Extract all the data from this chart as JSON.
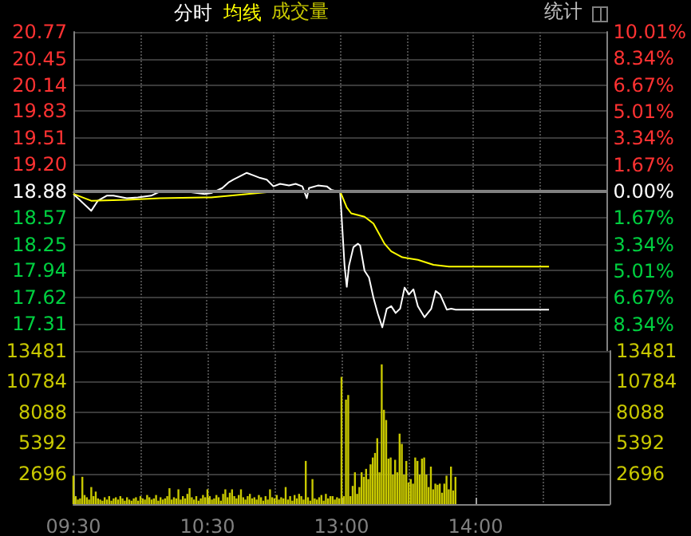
{
  "chart_data": [
    {
      "type": "line",
      "legend": "top left",
      "grid": true,
      "tick_labels": "y",
      "annotations": [
        "成交量",
        "统计"
      ],
      "ylim": [
        16.99,
        20.77
      ],
      "yticks": [
        17.31,
        17.62,
        17.94,
        18.25,
        18.57,
        18.88,
        {
          "value": 19.2,
          "label": "19.20"
        },
        19.51,
        19.83,
        20.14,
        20.45,
        20.77
      ],
      "y2lim": [
        -10.01,
        10.01
      ],
      "y2ticks": [
        {
          "value": -8.34,
          "label": "8.34%"
        },
        {
          "value": -6.67,
          "label": "6.67%"
        },
        {
          "value": -5.01,
          "label": "5.01%"
        },
        {
          "value": -3.34,
          "label": "3.34%"
        },
        {
          "value": -1.67,
          "label": "1.67%"
        },
        {
          "value": 0,
          "label": "0.00%"
        },
        {
          "value": 1.67,
          "label": "1.67%"
        },
        {
          "value": 3.34,
          "label": "3.34%"
        },
        {
          "value": 5.01,
          "label": "5.01%"
        },
        {
          "value": 6.67,
          "label": "6.67%"
        },
        {
          "value": 8.34,
          "label": "8.34%"
        },
        {
          "value": 10.01,
          "label": "10.01%"
        }
      ],
      "ref_lines": [
        {
          "axis": "y",
          "value": 18.88,
          "color": "#808080"
        }
      ],
      "series": [
        {
          "name": "分时",
          "color": "#ffffff",
          "values": [
            18.85,
            null,
            18.8,
            null,
            null,
            null,
            null,
            null,
            18.65,
            null,
            null,
            18.77,
            null,
            null,
            null,
            18.83,
            null,
            null,
            18.83,
            null,
            null,
            null,
            null,
            null,
            18.8,
            null,
            null,
            null,
            null,
            18.81,
            null,
            null,
            null,
            null,
            null,
            18.83,
            null,
            null,
            null,
            18.88,
            null,
            null,
            null,
            18.89,
            null,
            null,
            null,
            null,
            18.88,
            null,
            null,
            null,
            null,
            18.87,
            null,
            null,
            null,
            null,
            null,
            18.85,
            null,
            null,
            18.86,
            null,
            null,
            null,
            null,
            18.92,
            null,
            null,
            18.99,
            null,
            19.02,
            null,
            null,
            19.06,
            null,
            null,
            19.1,
            null,
            null,
            19.07,
            null,
            null,
            19.04,
            null,
            null,
            19.02,
            null,
            null,
            18.94,
            null,
            null,
            18.97,
            null,
            null,
            null,
            18.95,
            null,
            null,
            18.97,
            null,
            null,
            18.94,
            null,
            18.8,
            18.92,
            null,
            null,
            null,
            18.95,
            null,
            null,
            null,
            18.94,
            null,
            18.9,
            null,
            null,
            18.88,
            18.88,
            18.44,
            18.0,
            17.75,
            18.0,
            null,
            18.22,
            null,
            18.26,
            18.24,
            null,
            17.94,
            null,
            17.86,
            null,
            17.62,
            null,
            17.43,
            null,
            17.27,
            null,
            17.49,
            null,
            17.52,
            null,
            17.44,
            null,
            17.49,
            null,
            17.74,
            null,
            17.66,
            null,
            17.72,
            null,
            17.52,
            null,
            null,
            17.39,
            null,
            null,
            17.49,
            null,
            17.7,
            null,
            17.66,
            null,
            null,
            17.48,
            null,
            17.49,
            null,
            17.48,
            17.48,
            17.48,
            17.48,
            17.48,
            17.48,
            17.48,
            17.48,
            17.48,
            17.48,
            17.48,
            17.48,
            17.48,
            17.48,
            17.48,
            17.48,
            17.48,
            17.48,
            17.48,
            17.48,
            17.48,
            17.48,
            17.48,
            17.48,
            17.48,
            17.48,
            17.48,
            17.48,
            17.48,
            17.48,
            17.48,
            17.48,
            17.48,
            17.48,
            17.48,
            17.48,
            17.48,
            17.48,
            17.48,
            17.48,
            17.48,
            17.48,
            17.48,
            null,
            null,
            null,
            null,
            null,
            null,
            null,
            null,
            null,
            null,
            null,
            null,
            null,
            null,
            null,
            null,
            null,
            null,
            null,
            null,
            null,
            null,
            null,
            null,
            null,
            null
          ]
        },
        {
          "name": "均线",
          "color": "#ffff00",
          "values": [
            18.85,
            null,
            null,
            null,
            null,
            null,
            null,
            null,
            18.77,
            null,
            null,
            null,
            null,
            null,
            null,
            null,
            null,
            null,
            null,
            null,
            null,
            null,
            null,
            null,
            18.78,
            null,
            null,
            null,
            null,
            null,
            null,
            null,
            null,
            null,
            null,
            null,
            null,
            null,
            null,
            18.8,
            null,
            null,
            null,
            null,
            null,
            null,
            null,
            null,
            null,
            null,
            null,
            null,
            null,
            null,
            null,
            null,
            null,
            null,
            null,
            null,
            null,
            null,
            18.81,
            null,
            null,
            null,
            null,
            null,
            null,
            null,
            null,
            null,
            null,
            null,
            null,
            null,
            null,
            null,
            null,
            null,
            null,
            null,
            null,
            null,
            null,
            null,
            null,
            18.87,
            null,
            null,
            null,
            null,
            null,
            null,
            null,
            null,
            null,
            null,
            null,
            null,
            null,
            null,
            null,
            null,
            null,
            null,
            null,
            null,
            null,
            null,
            null,
            null,
            null,
            null,
            null,
            null,
            null,
            null,
            null,
            null,
            18.88,
            null,
            null,
            18.69,
            null,
            18.62,
            null,
            null,
            null,
            null,
            null,
            18.58,
            null,
            null,
            null,
            18.5,
            null,
            null,
            null,
            null,
            18.26,
            null,
            null,
            18.17,
            null,
            null,
            null,
            null,
            18.1,
            null,
            null,
            null,
            null,
            null,
            null,
            18.07,
            null,
            null,
            null,
            null,
            null,
            null,
            18.01,
            null,
            null,
            null,
            null,
            null,
            null,
            17.99,
            17.99,
            17.99,
            17.99,
            17.99,
            17.99,
            17.99,
            17.99,
            17.99,
            17.99,
            17.99,
            17.99,
            17.99,
            17.99,
            17.99,
            17.99,
            17.99,
            17.99,
            17.99,
            17.99,
            17.99,
            17.99,
            17.99,
            17.99,
            17.99,
            17.99,
            17.99,
            17.99,
            17.99,
            17.99,
            17.99,
            17.99,
            17.99,
            17.99,
            17.99,
            17.99,
            17.99,
            17.99,
            17.99,
            17.99,
            17.99,
            17.99,
            17.99,
            17.99,
            17.99,
            17.99,
            null,
            null,
            null,
            null,
            null,
            null,
            null,
            null,
            null,
            null,
            null,
            null,
            null,
            null,
            null,
            null,
            null,
            null,
            null,
            null,
            null,
            null,
            null,
            null,
            null,
            null
          ]
        }
      ]
    },
    {
      "type": "bar",
      "grid": true,
      "color": "#c8c800",
      "categories": [
        "09:30",
        null,
        null,
        null,
        null,
        null,
        null,
        null,
        null,
        null,
        null,
        null,
        null,
        null,
        null,
        null,
        null,
        null,
        null,
        null,
        null,
        null,
        null,
        null,
        null,
        null,
        null,
        null,
        null,
        null,
        null,
        null,
        null,
        null,
        null,
        null,
        null,
        null,
        null,
        null,
        null,
        null,
        null,
        null,
        null,
        null,
        null,
        null,
        null,
        null,
        null,
        null,
        null,
        null,
        null,
        null,
        null,
        null,
        null,
        null,
        "10:30",
        null,
        null,
        null,
        null,
        null,
        null,
        null,
        null,
        null,
        null,
        null,
        null,
        null,
        null,
        null,
        null,
        null,
        null,
        null,
        null,
        null,
        null,
        null,
        null,
        null,
        null,
        null,
        null,
        null,
        null,
        null,
        null,
        null,
        null,
        null,
        null,
        null,
        null,
        null,
        null,
        null,
        null,
        null,
        null,
        null,
        null,
        null,
        null,
        null,
        null,
        null,
        null,
        null,
        null,
        null,
        null,
        null,
        null,
        null,
        "13:00",
        null,
        null,
        null,
        null,
        null,
        null,
        null,
        null,
        null,
        null,
        null,
        null,
        null,
        null,
        null,
        null,
        null,
        null,
        null,
        null,
        null,
        null,
        null,
        null,
        null,
        null,
        null,
        null,
        null,
        null,
        null,
        null,
        null,
        null,
        null,
        null,
        null,
        null,
        null,
        null,
        null,
        null,
        null,
        null,
        null,
        null,
        null,
        null,
        null,
        null,
        null,
        null,
        null,
        null,
        null,
        null,
        null,
        null,
        null,
        "14:00",
        null,
        null,
        null,
        null,
        null,
        null,
        null,
        null,
        null,
        null,
        null,
        null,
        null,
        null,
        null,
        null,
        null,
        null,
        null,
        null,
        null,
        null,
        null,
        null,
        null,
        null,
        null,
        null,
        null,
        null,
        null,
        null,
        null,
        null,
        null,
        null,
        null,
        null,
        null,
        null,
        null,
        null,
        null,
        null,
        null,
        null,
        null,
        null,
        null,
        null,
        null,
        null,
        null,
        null,
        null,
        null,
        null,
        null,
        null,
        null
      ],
      "ylim": [
        0,
        13481
      ],
      "yticks": [
        2696,
        5392,
        8088,
        10784,
        13481
      ],
      "y2lim": [
        0,
        13481
      ],
      "y2ticks": [
        2696,
        5392,
        8088,
        10784,
        13481
      ],
      "values": [
        2500,
        700,
        400,
        500,
        2400,
        800,
        600,
        400,
        1500,
        700,
        1100,
        500,
        400,
        300,
        600,
        400,
        700,
        300,
        500,
        600,
        400,
        700,
        500,
        300,
        600,
        400,
        300,
        500,
        600,
        300,
        700,
        500,
        400,
        800,
        600,
        400,
        500,
        800,
        300,
        600,
        400,
        500,
        700,
        1400,
        400,
        600,
        500,
        1300,
        400,
        700,
        500,
        900,
        1400,
        600,
        400,
        700,
        300,
        500,
        800,
        600,
        1300,
        700,
        400,
        500,
        800,
        600,
        300,
        900,
        1300,
        600,
        1000,
        1300,
        700,
        500,
        800,
        1300,
        600,
        400,
        700,
        900,
        500,
        600,
        400,
        800,
        600,
        300,
        700,
        400,
        1300,
        600,
        500,
        800,
        400,
        600,
        500,
        1500,
        400,
        700,
        300,
        800,
        500,
        900,
        700,
        400,
        3800,
        600,
        300,
        2200,
        500,
        400,
        600,
        800,
        300,
        900,
        500,
        700,
        700,
        400,
        600,
        500,
        11200,
        700,
        9200,
        9600,
        700,
        1600,
        2800,
        900,
        1500,
        2800,
        2400,
        3100,
        2200,
        3500,
        4100,
        4500,
        5800,
        2800,
        12300,
        8300,
        7400,
        4000,
        4100,
        2600,
        3900,
        2800,
        6200,
        5300,
        2600,
        3800,
        1900,
        2200,
        1800,
        4100,
        3800,
        2600,
        4000,
        4100,
        2600,
        1500,
        3300,
        1300,
        1800,
        1700,
        1800,
        1000,
        1800,
        2500,
        1300,
        3300,
        1200,
        2400,
        null,
        null,
        null,
        null,
        null,
        null,
        null,
        null,
        null,
        null,
        null,
        null,
        null,
        null,
        null,
        null,
        null,
        null,
        null,
        null,
        null,
        null,
        null,
        null,
        null,
        null,
        null,
        null,
        null,
        null,
        null,
        null,
        null,
        null,
        null,
        null,
        null,
        null,
        null,
        null,
        null,
        null,
        null,
        null,
        null,
        null,
        null,
        null,
        null,
        null,
        null,
        null,
        null,
        null,
        null,
        null,
        null,
        null,
        null,
        null,
        null,
        null,
        null,
        null,
        null,
        null,
        null,
        null,
        null
      ]
    }
  ]
}
